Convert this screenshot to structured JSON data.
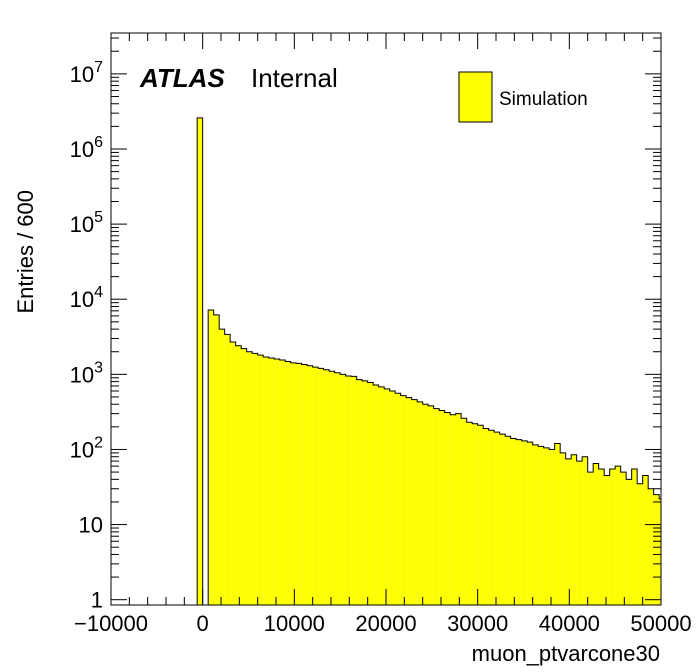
{
  "chart_data": {
    "type": "bar",
    "xlabel": "muon_ptvarcone30",
    "ylabel": "Entries / 600",
    "xlim": [
      -10000,
      50000
    ],
    "ylim": [
      0.85,
      35000000
    ],
    "log_y": true,
    "bin_width": 600,
    "x_ticks": [
      {
        "value": -10000,
        "label": "−10000"
      },
      {
        "value": 0,
        "label": "0"
      },
      {
        "value": 10000,
        "label": "10000"
      },
      {
        "value": 20000,
        "label": "20000"
      },
      {
        "value": 30000,
        "label": "30000"
      },
      {
        "value": 40000,
        "label": "40000"
      },
      {
        "value": 50000,
        "label": "50000"
      }
    ],
    "y_ticks": [
      {
        "value": 1,
        "base": "1",
        "exp": ""
      },
      {
        "value": 10,
        "base": "10",
        "exp": ""
      },
      {
        "value": 100,
        "base": "10",
        "exp": "2"
      },
      {
        "value": 1000,
        "base": "10",
        "exp": "3"
      },
      {
        "value": 10000,
        "base": "10",
        "exp": "4"
      },
      {
        "value": 100000,
        "base": "10",
        "exp": "5"
      },
      {
        "value": 1000000,
        "base": "10",
        "exp": "6"
      },
      {
        "value": 10000000,
        "base": "10",
        "exp": "7"
      }
    ],
    "series": [
      {
        "name": "Simulation",
        "color": "#ffff00",
        "edge": [
          -600,
          0,
          600,
          1200,
          1800,
          2400,
          3000,
          3600,
          4200,
          4800,
          5400,
          6000,
          6600,
          7200,
          7800,
          8400,
          9000,
          9600,
          10200,
          10800,
          11400,
          12000,
          12600,
          13200,
          13800,
          14400,
          15000,
          15600,
          16200,
          16800,
          17400,
          18000,
          18600,
          19200,
          19800,
          20400,
          21000,
          21600,
          22200,
          22800,
          23400,
          24000,
          24600,
          25200,
          25800,
          26400,
          27000,
          27600,
          28200,
          28800,
          29400,
          30000,
          30600,
          31200,
          31800,
          32400,
          33000,
          33600,
          34200,
          34800,
          35400,
          36000,
          36600,
          37200,
          37800,
          38400,
          39000,
          39600,
          40200,
          40800,
          41400,
          42000,
          42600,
          43200,
          43800,
          44400,
          45000,
          45600,
          46200,
          46800,
          47400,
          48000,
          48600,
          49200,
          49800
        ],
        "values": [
          2600000,
          0,
          7200,
          6200,
          4000,
          3400,
          2700,
          2400,
          2200,
          2000,
          1900,
          1800,
          1700,
          1650,
          1600,
          1550,
          1480,
          1420,
          1400,
          1350,
          1300,
          1250,
          1200,
          1150,
          1100,
          1050,
          1000,
          950,
          940,
          850,
          820,
          780,
          720,
          680,
          640,
          600,
          560,
          520,
          490,
          460,
          430,
          400,
          380,
          350,
          330,
          310,
          290,
          300,
          260,
          230,
          220,
          210,
          190,
          180,
          170,
          160,
          150,
          140,
          135,
          130,
          125,
          115,
          110,
          105,
          100,
          120,
          90,
          75,
          85,
          70,
          80,
          50,
          65,
          55,
          45,
          55,
          60,
          50,
          40,
          55,
          35,
          45,
          30,
          25,
          22
        ]
      }
    ]
  },
  "labels": {
    "atlas": "ATLAS",
    "internal": "Internal",
    "legend_entry": "Simulation"
  }
}
